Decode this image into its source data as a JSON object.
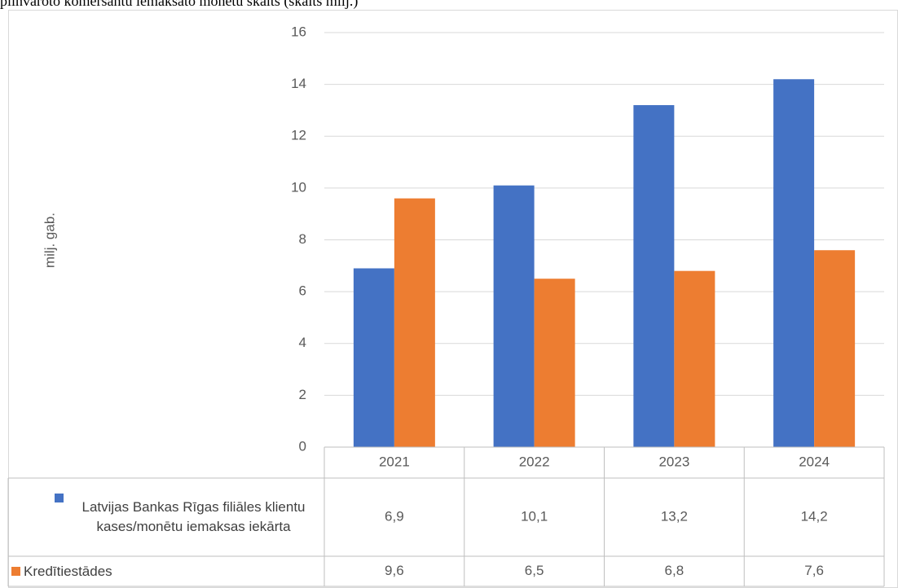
{
  "chart_data": {
    "type": "bar",
    "title": "pilnvaroto komersantu iemaksāto monētu skaits (skaits milj.)",
    "y_label": "milj. gab.",
    "categories": [
      "2021",
      "2022",
      "2023",
      "2024"
    ],
    "series": [
      {
        "name": "Latvijas Bankas Rīgas filiāles klientu kases/monētu iemaksas iekārta",
        "color": "#4472c4",
        "values": [
          6.9,
          10.1,
          13.2,
          14.2
        ],
        "value_labels": [
          "6,9",
          "10,1",
          "13,2",
          "14,2"
        ]
      },
      {
        "name": "Kredītiestādes",
        "color": "#ed7d31",
        "values": [
          9.6,
          6.5,
          6.8,
          7.6
        ],
        "value_labels": [
          "9,6",
          "6,5",
          "6,8",
          "7,6"
        ]
      }
    ],
    "ylim": [
      0,
      16
    ],
    "yticks": [
      0,
      2,
      4,
      6,
      8,
      10,
      12,
      14,
      16
    ],
    "grid": true,
    "data_table": true
  }
}
